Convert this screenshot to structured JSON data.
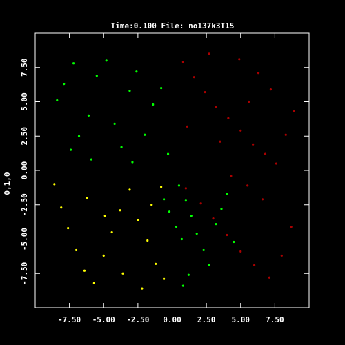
{
  "chart_data": {
    "type": "scatter",
    "title": "Time:0.100   File: no137k3T15",
    "xlabel": "",
    "ylabel": "0,1,0",
    "xlim": [
      -10,
      10
    ],
    "ylim": [
      -10,
      10
    ],
    "grid": false,
    "legend": "none",
    "xticks": [
      -7.5,
      -5.0,
      -2.5,
      0.0,
      2.5,
      5.0,
      7.5
    ],
    "yticks": [
      -7.5,
      -5.0,
      -2.5,
      0.0,
      2.5,
      5.0,
      7.5
    ],
    "xtick_labels": [
      "-7.50",
      "-5.00",
      "-2.50",
      "0.00",
      "2.50",
      "5.00",
      "7.50"
    ],
    "ytick_labels": [
      "-7.50",
      "-5.00",
      "-2.50",
      "0.00",
      "2.50",
      "5.00",
      "7.50"
    ],
    "series": [
      {
        "color": "#00ff00",
        "points": [
          [
            -8.4,
            5.1
          ],
          [
            -7.9,
            6.3
          ],
          [
            -7.2,
            7.8
          ],
          [
            -6.8,
            2.5
          ],
          [
            -6.1,
            4.0
          ],
          [
            -5.5,
            6.9
          ],
          [
            -4.8,
            8.0
          ],
          [
            -4.2,
            3.4
          ],
          [
            -3.7,
            1.7
          ],
          [
            -3.1,
            5.8
          ],
          [
            -2.6,
            7.2
          ],
          [
            -2.0,
            2.6
          ],
          [
            -1.4,
            4.8
          ],
          [
            -0.8,
            6.0
          ],
          [
            -0.3,
            1.2
          ],
          [
            -5.9,
            0.8
          ],
          [
            -7.4,
            1.5
          ],
          [
            -2.9,
            0.6
          ],
          [
            0.5,
            -1.1
          ],
          [
            1.0,
            -2.2
          ],
          [
            1.4,
            -3.3
          ],
          [
            1.8,
            -4.6
          ],
          [
            2.3,
            -5.8
          ],
          [
            2.7,
            -6.9
          ],
          [
            3.2,
            -3.9
          ],
          [
            3.6,
            -2.8
          ],
          [
            4.0,
            -1.7
          ],
          [
            4.5,
            -5.2
          ],
          [
            1.2,
            -7.6
          ],
          [
            0.8,
            -8.4
          ],
          [
            -0.6,
            -2.1
          ],
          [
            -0.2,
            -3.0
          ],
          [
            0.3,
            -4.1
          ],
          [
            0.7,
            -5.0
          ]
        ]
      },
      {
        "color": "#aa0000",
        "points": [
          [
            0.8,
            7.9
          ],
          [
            1.6,
            6.8
          ],
          [
            2.4,
            5.7
          ],
          [
            3.2,
            4.6
          ],
          [
            4.1,
            3.8
          ],
          [
            5.0,
            2.9
          ],
          [
            5.9,
            1.9
          ],
          [
            6.8,
            1.2
          ],
          [
            7.6,
            0.5
          ],
          [
            8.3,
            2.6
          ],
          [
            8.9,
            4.3
          ],
          [
            7.2,
            5.9
          ],
          [
            6.3,
            7.1
          ],
          [
            4.9,
            8.1
          ],
          [
            2.7,
            8.5
          ],
          [
            1.1,
            3.2
          ],
          [
            3.5,
            2.1
          ],
          [
            5.6,
            5.0
          ],
          [
            1.0,
            -1.3
          ],
          [
            2.1,
            -2.4
          ],
          [
            3.0,
            -3.5
          ],
          [
            4.0,
            -4.7
          ],
          [
            5.0,
            -5.9
          ],
          [
            6.0,
            -6.9
          ],
          [
            7.1,
            -7.8
          ],
          [
            8.0,
            -6.2
          ],
          [
            8.7,
            -4.1
          ],
          [
            6.6,
            -2.1
          ],
          [
            5.5,
            -1.1
          ],
          [
            4.3,
            -0.4
          ]
        ]
      },
      {
        "color": "#ffff00",
        "points": [
          [
            -8.6,
            -1.0
          ],
          [
            -8.1,
            -2.7
          ],
          [
            -7.6,
            -4.2
          ],
          [
            -7.0,
            -5.8
          ],
          [
            -6.4,
            -7.3
          ],
          [
            -5.7,
            -8.2
          ],
          [
            -5.0,
            -6.2
          ],
          [
            -4.4,
            -4.5
          ],
          [
            -3.8,
            -2.9
          ],
          [
            -3.1,
            -1.4
          ],
          [
            -2.5,
            -3.6
          ],
          [
            -1.8,
            -5.1
          ],
          [
            -1.2,
            -6.8
          ],
          [
            -0.6,
            -7.9
          ],
          [
            -2.2,
            -8.6
          ],
          [
            -3.6,
            -7.5
          ],
          [
            -4.9,
            -3.3
          ],
          [
            -6.2,
            -2.0
          ],
          [
            -0.8,
            -1.2
          ],
          [
            -1.5,
            -2.5
          ]
        ]
      }
    ]
  }
}
